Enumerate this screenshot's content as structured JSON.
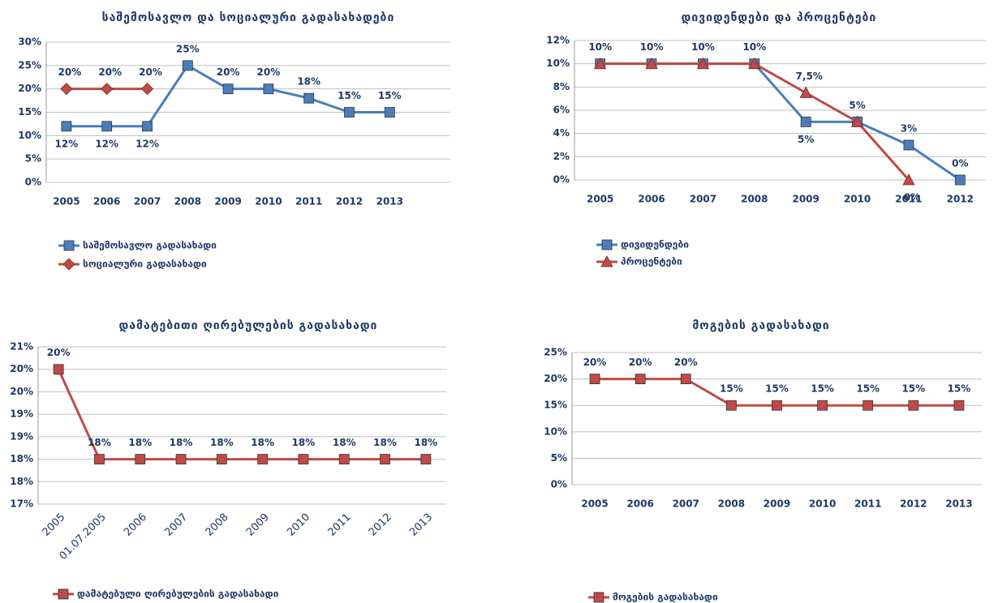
{
  "chart_data": [
    {
      "type": "line",
      "title": "საშემოსავლო და სოციალური გადასახადები",
      "categories": [
        "2005",
        "2006",
        "2007",
        "2008",
        "2009",
        "2010",
        "2011",
        "2012",
        "2013"
      ],
      "series": [
        {
          "name": "საშემოსავლო გადასახადი",
          "color": "#4a7ebb",
          "marker": "square",
          "values": [
            12,
            12,
            12,
            25,
            20,
            20,
            18,
            15,
            15
          ],
          "value_labels": [
            "12%",
            "12%",
            "12%",
            "25%",
            "20%",
            "20%",
            "18%",
            "15%",
            "15%"
          ]
        },
        {
          "name": "სოციალური გადასახადი",
          "color": "#be4b48",
          "marker": "diamond",
          "values": [
            20,
            20,
            20,
            null,
            null,
            null,
            null,
            null,
            null
          ],
          "value_labels": [
            "20%",
            "20%",
            "20%",
            null,
            null,
            null,
            null,
            null,
            null
          ]
        }
      ],
      "ylim": [
        0,
        30
      ],
      "yticks": [
        {
          "value": 0,
          "label": "0%"
        },
        {
          "value": 5,
          "label": "5%"
        },
        {
          "value": 10,
          "label": "10%"
        },
        {
          "value": 15,
          "label": "15%"
        },
        {
          "value": 20,
          "label": "20%"
        },
        {
          "value": 25,
          "label": "25%"
        },
        {
          "value": 30,
          "label": "30%"
        }
      ],
      "grid": true
    },
    {
      "type": "line",
      "title": "დივიდენდები და პროცენტები",
      "categories": [
        "2005",
        "2006",
        "2007",
        "2008",
        "2009",
        "2010",
        "2011",
        "2012"
      ],
      "series": [
        {
          "name": "დივიდენდები",
          "color": "#4a7ebb",
          "marker": "square",
          "values": [
            10,
            10,
            10,
            10,
            5,
            5,
            3,
            0
          ],
          "value_labels": [
            "10%",
            "10%",
            "10%",
            "10%",
            "5%",
            "5%",
            "3%",
            "0%"
          ]
        },
        {
          "name": "პროცენტები",
          "color": "#be4b48",
          "marker": "triangle",
          "values": [
            10,
            10,
            10,
            10,
            7.5,
            5,
            0,
            null
          ],
          "value_labels": [
            null,
            null,
            null,
            null,
            "7,5%",
            null,
            "0%",
            null
          ]
        }
      ],
      "ylim": [
        0,
        12
      ],
      "yticks": [
        {
          "value": 0,
          "label": "0%"
        },
        {
          "value": 2,
          "label": "2%"
        },
        {
          "value": 4,
          "label": "4%"
        },
        {
          "value": 6,
          "label": "6%"
        },
        {
          "value": 8,
          "label": "8%"
        },
        {
          "value": 10,
          "label": "10%"
        },
        {
          "value": 12,
          "label": "12%"
        }
      ],
      "grid": true
    },
    {
      "type": "line",
      "title": "დამატებითი ღირებულების გადასახადი",
      "categories": [
        "2005",
        "01.07.2005",
        "2006",
        "2007",
        "2008",
        "2009",
        "2010",
        "2011",
        "2012",
        "2013"
      ],
      "series": [
        {
          "name": "დამატებული ღირებულების გადასახადი",
          "color": "#be4b48",
          "marker": "square",
          "values": [
            20,
            18,
            18,
            18,
            18,
            18,
            18,
            18,
            18,
            18
          ],
          "value_labels": [
            "20%",
            "18%",
            "18%",
            "18%",
            "18%",
            "18%",
            "18%",
            "18%",
            "18%",
            "18%"
          ]
        }
      ],
      "ylim": [
        17,
        20.5
      ],
      "yticks": [
        {
          "value": 17,
          "label": "17%"
        },
        {
          "value": 17.5,
          "label": "18%"
        },
        {
          "value": 18,
          "label": "18%"
        },
        {
          "value": 18.5,
          "label": "19%"
        },
        {
          "value": 19,
          "label": "19%"
        },
        {
          "value": 19.5,
          "label": "20%"
        },
        {
          "value": 20,
          "label": "20%"
        },
        {
          "value": 20.5,
          "label": "21%"
        }
      ],
      "grid": true
    },
    {
      "type": "line",
      "title": "მოგების გადასახადი",
      "categories": [
        "2005",
        "2006",
        "2007",
        "2008",
        "2009",
        "2010",
        "2011",
        "2012",
        "2013"
      ],
      "series": [
        {
          "name": "მოგების გადასახადი",
          "color": "#be4b48",
          "marker": "square",
          "values": [
            20,
            20,
            20,
            15,
            15,
            15,
            15,
            15,
            15
          ],
          "value_labels": [
            "20%",
            "20%",
            "20%",
            "15%",
            "15%",
            "15%",
            "15%",
            "15%",
            "15%"
          ]
        }
      ],
      "ylim": [
        0,
        25
      ],
      "yticks": [
        {
          "value": 0,
          "label": "0%"
        },
        {
          "value": 5,
          "label": "5%"
        },
        {
          "value": 10,
          "label": "10%"
        },
        {
          "value": 15,
          "label": "15%"
        },
        {
          "value": 20,
          "label": "20%"
        },
        {
          "value": 25,
          "label": "25%"
        }
      ],
      "grid": true
    }
  ]
}
